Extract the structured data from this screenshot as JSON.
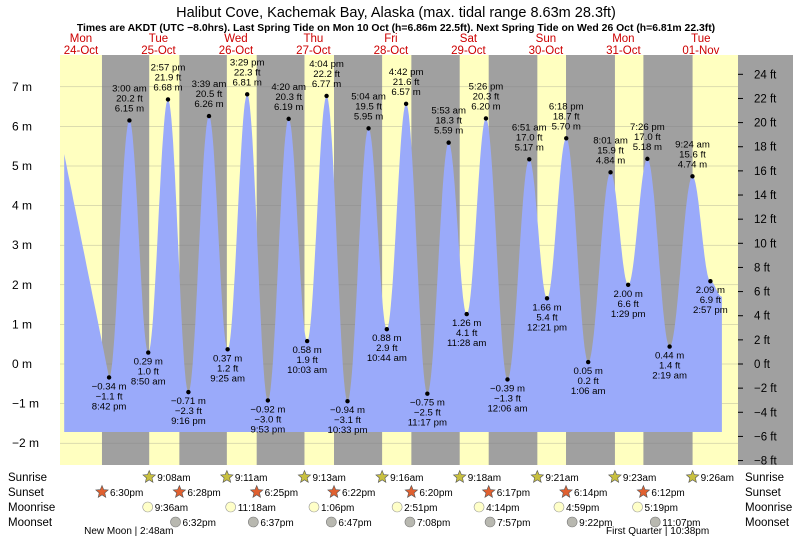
{
  "chart_data": {
    "type": "area",
    "title": "Halibut Cove, Kachemak Bay, Alaska (max. tidal range 8.63m 28.3ft)",
    "subtitle": "Times are AKDT (UTC −8.0hrs). Last Spring Tide on Mon 10 Oct (h=6.86m 22.5ft). Next Spring Tide on Wed 26 Oct (h=6.81m 22.3ft)",
    "xlabel": "",
    "ylabel": "",
    "ylim_m": [
      -2.3,
      7.8
    ],
    "grid": true,
    "left_axis": {
      "unit": "m",
      "ticks": [
        7,
        6,
        5,
        4,
        3,
        2,
        1,
        0,
        -1,
        -2
      ],
      "tick_labels": [
        "7 m",
        "6 m",
        "5 m",
        "4 m",
        "3 m",
        "2 m",
        "1 m",
        "0 m",
        "−1 m",
        "−2 m"
      ]
    },
    "right_axis": {
      "unit": "ft",
      "ticks": [
        24,
        22,
        20,
        18,
        16,
        14,
        12,
        10,
        8,
        6,
        4,
        2,
        0,
        -2,
        -4,
        -6,
        -8
      ],
      "tick_labels": [
        "24 ft",
        "22 ft",
        "20 ft",
        "18 ft",
        "16 ft",
        "14 ft",
        "12 ft",
        "10 ft",
        "8 ft",
        "6 ft",
        "4 ft",
        "2 ft",
        "0 ft",
        "−2 ft",
        "−4 ft",
        "−6 ft",
        "−8 ft"
      ]
    },
    "days": [
      {
        "dow": "Mon",
        "date": "24-Oct"
      },
      {
        "dow": "Tue",
        "date": "25-Oct"
      },
      {
        "dow": "Wed",
        "date": "26-Oct"
      },
      {
        "dow": "Thu",
        "date": "27-Oct"
      },
      {
        "dow": "Fri",
        "date": "28-Oct"
      },
      {
        "dow": "Sat",
        "date": "29-Oct"
      },
      {
        "dow": "Sun",
        "date": "30-Oct"
      },
      {
        "dow": "Mon",
        "date": "31-Oct"
      },
      {
        "dow": "Tue",
        "date": "01-Nov"
      }
    ],
    "x_range_hours": [
      5.5,
      215.5
    ],
    "data_range_hours": [
      6.8,
      210.5
    ],
    "start_height_m": 5.3,
    "end_height_m": 1.7,
    "tides": [
      {
        "type": "low",
        "t": 20.7,
        "h": -0.34,
        "time": "8:42 pm",
        "m": "−0.34 m",
        "ft": "−1.1 ft"
      },
      {
        "type": "high",
        "t": 27.0,
        "h": 6.15,
        "time": "3:00 am",
        "m": "6.15 m",
        "ft": "20.2 ft"
      },
      {
        "type": "low",
        "t": 32.83,
        "h": 0.29,
        "time": "8:50 am",
        "m": "0.29 m",
        "ft": "1.0 ft"
      },
      {
        "type": "high",
        "t": 38.95,
        "h": 6.68,
        "time": "2:57 pm",
        "m": "6.68 m",
        "ft": "21.9 ft"
      },
      {
        "type": "low",
        "t": 45.27,
        "h": -0.71,
        "time": "9:16 pm",
        "m": "−0.71 m",
        "ft": "−2.3 ft"
      },
      {
        "type": "high",
        "t": 51.65,
        "h": 6.26,
        "time": "3:39 am",
        "m": "6.26 m",
        "ft": "20.5 ft"
      },
      {
        "type": "low",
        "t": 57.42,
        "h": 0.37,
        "time": "9:25 am",
        "m": "0.37 m",
        "ft": "1.2 ft"
      },
      {
        "type": "high",
        "t": 63.48,
        "h": 6.81,
        "time": "3:29 pm",
        "m": "6.81 m",
        "ft": "22.3 ft"
      },
      {
        "type": "low",
        "t": 69.88,
        "h": -0.92,
        "time": "9:53 pm",
        "m": "−0.92 m",
        "ft": "−3.0 ft"
      },
      {
        "type": "high",
        "t": 76.33,
        "h": 6.19,
        "time": "4:20 am",
        "m": "6.19 m",
        "ft": "20.3 ft"
      },
      {
        "type": "low",
        "t": 82.05,
        "h": 0.58,
        "time": "10:03 am",
        "m": "0.58 m",
        "ft": "1.9 ft"
      },
      {
        "type": "high",
        "t": 88.07,
        "h": 6.77,
        "time": "4:04 pm",
        "m": "6.77 m",
        "ft": "22.2 ft"
      },
      {
        "type": "low",
        "t": 94.55,
        "h": -0.94,
        "time": "10:33 pm",
        "m": "−0.94 m",
        "ft": "−3.1 ft"
      },
      {
        "type": "high",
        "t": 101.07,
        "h": 5.95,
        "time": "5:04 am",
        "m": "5.95 m",
        "ft": "19.5 ft"
      },
      {
        "type": "low",
        "t": 106.73,
        "h": 0.88,
        "time": "10:44 am",
        "m": "0.88 m",
        "ft": "2.9 ft"
      },
      {
        "type": "high",
        "t": 112.7,
        "h": 6.57,
        "time": "4:42 pm",
        "m": "6.57 m",
        "ft": "21.6 ft"
      },
      {
        "type": "low",
        "t": 119.28,
        "h": -0.75,
        "time": "11:17 pm",
        "m": "−0.75 m",
        "ft": "−2.5 ft"
      },
      {
        "type": "high",
        "t": 125.88,
        "h": 5.59,
        "time": "5:53 am",
        "m": "5.59 m",
        "ft": "18.3 ft"
      },
      {
        "type": "low",
        "t": 131.47,
        "h": 1.26,
        "time": "11:28 am",
        "m": "1.26 m",
        "ft": "4.1 ft"
      },
      {
        "type": "high",
        "t": 137.43,
        "h": 6.2,
        "time": "5:26 pm",
        "m": "6.20 m",
        "ft": "20.3 ft"
      },
      {
        "type": "low",
        "t": 144.1,
        "h": -0.39,
        "time": "12:06 am",
        "m": "−0.39 m",
        "ft": "−1.3 ft"
      },
      {
        "type": "high",
        "t": 150.85,
        "h": 5.17,
        "time": "6:51 am",
        "m": "5.17 m",
        "ft": "17.0 ft"
      },
      {
        "type": "low",
        "t": 156.35,
        "h": 1.66,
        "time": "12:21 pm",
        "m": "1.66 m",
        "ft": "5.4 ft"
      },
      {
        "type": "high",
        "t": 162.3,
        "h": 5.7,
        "time": "6:18 pm",
        "m": "5.70 m",
        "ft": "18.7 ft"
      },
      {
        "type": "low",
        "t": 169.1,
        "h": 0.05,
        "time": "1:06 am",
        "m": "0.05 m",
        "ft": "0.2 ft"
      },
      {
        "type": "high",
        "t": 176.02,
        "h": 4.84,
        "time": "8:01 am",
        "m": "4.84 m",
        "ft": "15.9 ft"
      },
      {
        "type": "low",
        "t": 181.48,
        "h": 2.0,
        "time": "1:29 pm",
        "m": "2.00 m",
        "ft": "6.6 ft"
      },
      {
        "type": "high",
        "t": 187.43,
        "h": 5.18,
        "time": "7:26 pm",
        "m": "5.18 m",
        "ft": "17.0 ft"
      },
      {
        "type": "low",
        "t": 194.32,
        "h": 0.44,
        "time": "2:19 am",
        "m": "0.44 m",
        "ft": "1.4 ft"
      },
      {
        "type": "high",
        "t": 201.4,
        "h": 4.74,
        "time": "9:24 am",
        "m": "4.74 m",
        "ft": "15.6 ft"
      },
      {
        "type": "low",
        "t": 206.95,
        "h": 2.09,
        "time": "2:57 pm",
        "m": "2.09 m",
        "ft": "6.9 ft"
      }
    ],
    "sunrise_hours": [
      33.13,
      57.18,
      81.22,
      105.27,
      129.3,
      153.35,
      177.38,
      201.43
    ],
    "sunset_hours": [
      18.5,
      42.47,
      66.42,
      90.37,
      114.33,
      138.28,
      162.23,
      186.2
    ],
    "moonrise_hours": [
      33.6,
      59.3,
      85.1,
      110.85,
      136.23,
      160.98,
      185.32
    ],
    "moonset_hours": [
      42.53,
      66.62,
      90.78,
      115.13,
      139.95,
      165.37,
      191.12
    ],
    "rows": {
      "labels": [
        "Sunrise",
        "Sunset",
        "Moonrise",
        "Moonset"
      ],
      "sunrise": [
        "9:08am",
        "9:11am",
        "9:13am",
        "9:16am",
        "9:18am",
        "9:21am",
        "9:23am",
        "9:26am"
      ],
      "sunset": [
        "6:30pm",
        "6:28pm",
        "6:25pm",
        "6:22pm",
        "6:20pm",
        "6:17pm",
        "6:14pm",
        "6:12pm"
      ],
      "moonrise": [
        "9:36am",
        "11:18am",
        "1:06pm",
        "2:51pm",
        "4:14pm",
        "4:59pm",
        "5:19pm"
      ],
      "moonset": [
        "6:32pm",
        "6:37pm",
        "6:47pm",
        "7:08pm",
        "7:57pm",
        "9:22pm",
        "11:07pm"
      ]
    },
    "moon_phases": [
      {
        "label": "New Moon | 2:48am",
        "t": 26.8
      },
      {
        "label": "First Quarter | 10:38pm",
        "t": 190.6
      }
    ]
  },
  "colors": {
    "day": "#ffffc0",
    "night": "#a0a0a0",
    "water": "#9aaafa",
    "axis_bg": "#a0a0a0",
    "dow_text": "#cc0000",
    "sun_star": "#c8c040",
    "sunset_star": "#e06030",
    "moonrise_circle": "#ffffc8",
    "moonset_circle": "#b8b8b0"
  }
}
